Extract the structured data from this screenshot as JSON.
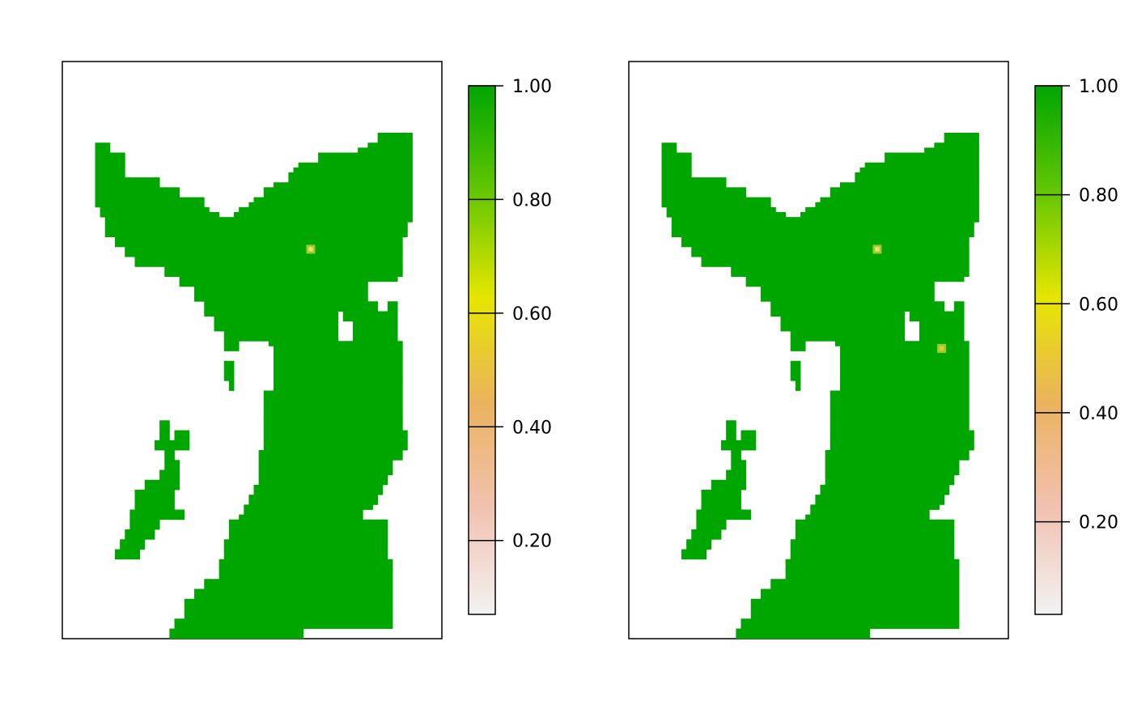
{
  "colors": {
    "land": "#00a600",
    "frame": "#000000",
    "background": "#ffffff",
    "legend_gradient": [
      "#f2f2f2",
      "#f1c2b1",
      "#ebb25e",
      "#e6e600",
      "#63c600",
      "#00a600"
    ]
  },
  "panels": [
    {
      "legend": {
        "min": 0.07,
        "max": 1.0,
        "ticks": [
          {
            "value": 1.0,
            "label": "1.00"
          },
          {
            "value": 0.8,
            "label": "0.80"
          },
          {
            "value": 0.6,
            "label": "0.60"
          },
          {
            "value": 0.4,
            "label": "0.40"
          },
          {
            "value": 0.2,
            "label": "0.20"
          }
        ]
      },
      "hotspots": [
        {
          "col": 43,
          "row": 23,
          "value": 0.55
        }
      ]
    },
    {
      "legend": {
        "min": 0.03,
        "max": 1.0,
        "ticks": [
          {
            "value": 1.0,
            "label": "1.00"
          },
          {
            "value": 0.8,
            "label": "0.80"
          },
          {
            "value": 0.6,
            "label": "0.60"
          },
          {
            "value": 0.4,
            "label": "0.40"
          },
          {
            "value": 0.2,
            "label": "0.20"
          }
        ]
      },
      "hotspots": [
        {
          "col": 43,
          "row": 23,
          "value": 0.55
        },
        {
          "col": 56,
          "row": 43,
          "value": 0.5
        }
      ]
    }
  ]
}
